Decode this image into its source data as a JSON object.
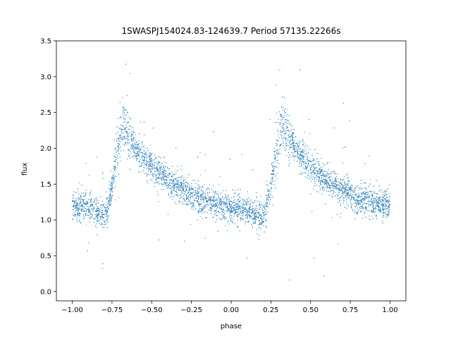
{
  "chart_data": {
    "type": "scatter",
    "title": "1SWASPJ154024.83-124639.7 Period 57135.22266s",
    "xlabel": "phase",
    "ylabel": "flux",
    "xlim": [
      -1.1,
      1.1
    ],
    "ylim": [
      -0.13,
      3.5
    ],
    "xticks": [
      -1.0,
      -0.75,
      -0.5,
      -0.25,
      0.0,
      0.25,
      0.5,
      0.75,
      1.0
    ],
    "xtick_labels": [
      "−1.00",
      "−0.75",
      "−0.50",
      "−0.25",
      "0.00",
      "0.25",
      "0.50",
      "0.75",
      "1.00"
    ],
    "yticks": [
      0.0,
      0.5,
      1.0,
      1.5,
      2.0,
      2.5,
      3.0,
      3.5
    ],
    "ytick_labels": [
      "0.0",
      "0.5",
      "1.0",
      "1.5",
      "2.0",
      "2.5",
      "3.0",
      "3.5"
    ],
    "grid": false,
    "marker_color": "#1f77b4",
    "light_curve": {
      "phase": [
        -1.0,
        -0.9,
        -0.8,
        -0.78,
        -0.72,
        -0.68,
        -0.6,
        -0.5,
        -0.4,
        -0.3,
        -0.2,
        -0.1,
        0.0,
        0.1,
        0.2,
        0.22,
        0.28,
        0.32,
        0.4,
        0.5,
        0.6,
        0.7,
        0.8,
        0.9,
        1.0
      ],
      "flux": [
        1.2,
        1.18,
        1.05,
        1.1,
        1.9,
        2.35,
        2.0,
        1.75,
        1.55,
        1.42,
        1.3,
        1.22,
        1.18,
        1.12,
        1.05,
        1.1,
        1.9,
        2.35,
        2.0,
        1.75,
        1.55,
        1.42,
        1.3,
        1.22,
        1.2
      ]
    }
  }
}
